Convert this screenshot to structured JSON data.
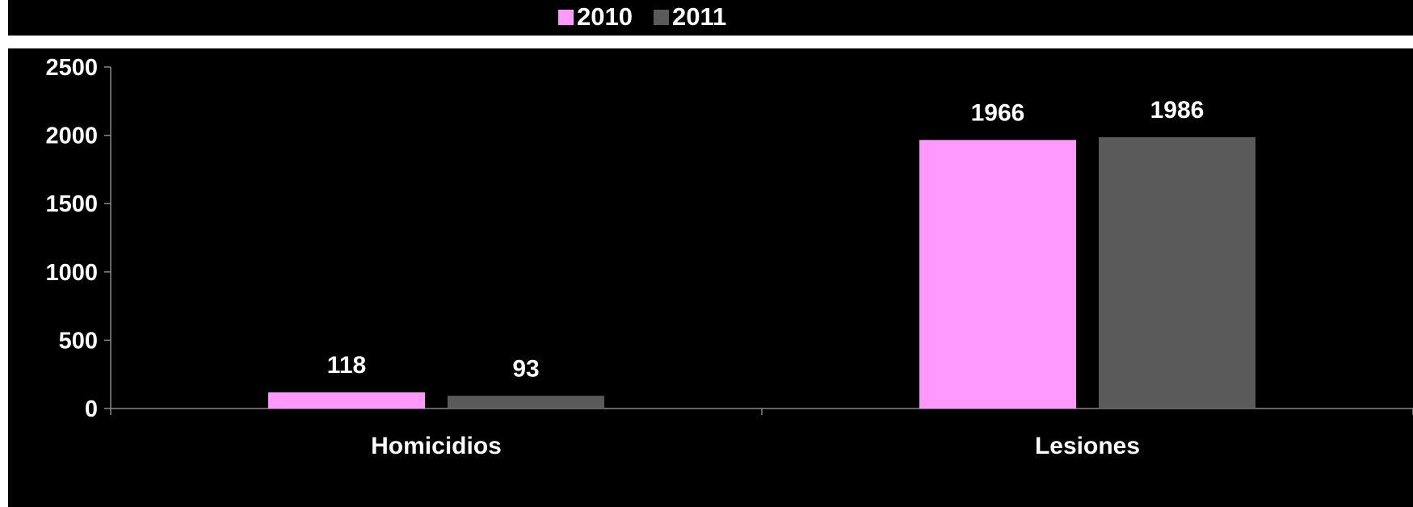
{
  "chart_data": {
    "type": "bar",
    "title": "",
    "xlabel": "",
    "ylabel": "",
    "categories": [
      "Homicidios",
      "Lesiones"
    ],
    "series": [
      {
        "name": "2010",
        "values": [
          118,
          1966
        ],
        "color": "#ff99ff"
      },
      {
        "name": "2011",
        "values": [
          93,
          1986
        ],
        "color": "#5a5a5a"
      }
    ],
    "ylim": [
      0,
      2500
    ],
    "yticks": [
      "0",
      "500",
      "1000",
      "1500",
      "2000",
      "2500"
    ],
    "grid": false,
    "legend_position": "top",
    "background": "#000000",
    "text_color": "#ffffff"
  }
}
